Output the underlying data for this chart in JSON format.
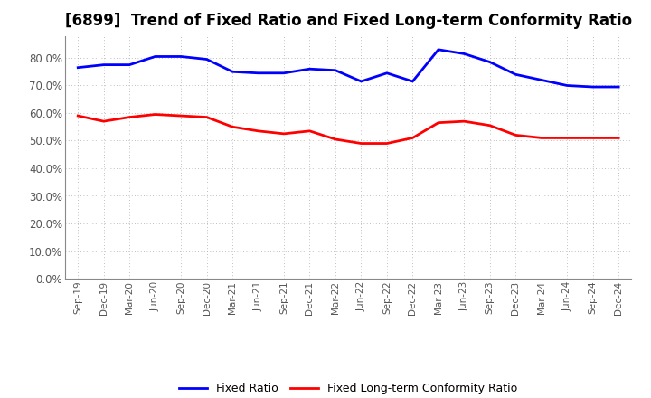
{
  "title": "[6899]  Trend of Fixed Ratio and Fixed Long-term Conformity Ratio",
  "x_labels": [
    "Sep-19",
    "Dec-19",
    "Mar-20",
    "Jun-20",
    "Sep-20",
    "Dec-20",
    "Mar-21",
    "Jun-21",
    "Sep-21",
    "Dec-21",
    "Mar-22",
    "Jun-22",
    "Sep-22",
    "Dec-22",
    "Mar-23",
    "Jun-23",
    "Sep-23",
    "Dec-23",
    "Mar-24",
    "Jun-24",
    "Sep-24",
    "Dec-24"
  ],
  "fixed_ratio": [
    76.5,
    77.5,
    77.5,
    80.5,
    80.5,
    79.5,
    75.0,
    74.5,
    74.5,
    76.0,
    75.5,
    71.5,
    74.5,
    71.5,
    83.0,
    81.5,
    78.5,
    74.0,
    72.0,
    70.0,
    69.5,
    69.5
  ],
  "fixed_lt_ratio": [
    59.0,
    57.0,
    58.5,
    59.5,
    59.0,
    58.5,
    55.0,
    53.5,
    52.5,
    53.5,
    50.5,
    49.0,
    49.0,
    51.0,
    56.5,
    57.0,
    55.5,
    52.0,
    51.0,
    51.0,
    51.0,
    51.0
  ],
  "fixed_ratio_color": "#0000FF",
  "fixed_lt_ratio_color": "#FF0000",
  "ylim": [
    0,
    88
  ],
  "yticks": [
    0,
    10,
    20,
    30,
    40,
    50,
    60,
    70,
    80
  ],
  "background_color": "#FFFFFF",
  "grid_color": "#AAAAAA",
  "title_fontsize": 12,
  "tick_label_color": "#555555",
  "legend_fixed_ratio": "Fixed Ratio",
  "legend_fixed_lt_ratio": "Fixed Long-term Conformity Ratio",
  "line_width": 2.0
}
